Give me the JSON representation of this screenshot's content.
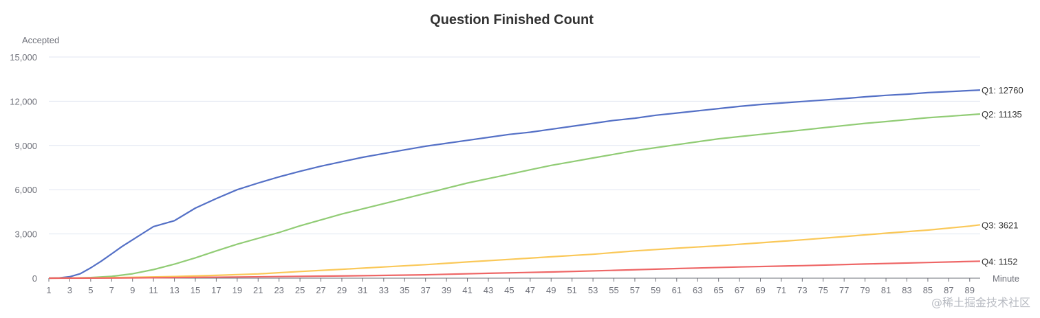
{
  "chart_data": {
    "type": "line",
    "title": "Question Finished Count",
    "xlabel": "Minute",
    "ylabel": "Accepted",
    "ylim": [
      0,
      15000
    ],
    "yticks": [
      0,
      3000,
      6000,
      9000,
      12000,
      15000
    ],
    "ytick_labels": [
      "0",
      "3,000",
      "6,000",
      "9,000",
      "12,000",
      "15,000"
    ],
    "x_range": [
      1,
      90
    ],
    "xtick_labels": [
      "1",
      "3",
      "5",
      "7",
      "9",
      "11",
      "13",
      "15",
      "17",
      "19",
      "21",
      "23",
      "25",
      "27",
      "29",
      "31",
      "33",
      "35",
      "37",
      "39",
      "41",
      "43",
      "45",
      "47",
      "49",
      "51",
      "53",
      "55",
      "57",
      "59",
      "61",
      "63",
      "65",
      "67",
      "69",
      "71",
      "73",
      "75",
      "77",
      "79",
      "81",
      "83",
      "85",
      "87",
      "89"
    ],
    "grid": true,
    "legend": "none",
    "series": [
      {
        "name": "Q1",
        "end_label": "Q1: 12760",
        "color": "#5470c6",
        "points": [
          [
            1,
            0
          ],
          [
            2,
            20
          ],
          [
            3,
            100
          ],
          [
            4,
            300
          ],
          [
            5,
            700
          ],
          [
            6,
            1150
          ],
          [
            7,
            1650
          ],
          [
            8,
            2150
          ],
          [
            9,
            2600
          ],
          [
            10,
            3050
          ],
          [
            11,
            3500
          ],
          [
            13,
            3900
          ],
          [
            15,
            4750
          ],
          [
            17,
            5400
          ],
          [
            19,
            6000
          ],
          [
            21,
            6450
          ],
          [
            23,
            6870
          ],
          [
            25,
            7250
          ],
          [
            27,
            7600
          ],
          [
            29,
            7900
          ],
          [
            31,
            8200
          ],
          [
            33,
            8450
          ],
          [
            35,
            8700
          ],
          [
            37,
            8950
          ],
          [
            39,
            9150
          ],
          [
            41,
            9350
          ],
          [
            43,
            9550
          ],
          [
            45,
            9750
          ],
          [
            47,
            9900
          ],
          [
            49,
            10100
          ],
          [
            51,
            10300
          ],
          [
            53,
            10500
          ],
          [
            55,
            10700
          ],
          [
            57,
            10850
          ],
          [
            59,
            11050
          ],
          [
            61,
            11200
          ],
          [
            63,
            11350
          ],
          [
            65,
            11500
          ],
          [
            67,
            11650
          ],
          [
            69,
            11780
          ],
          [
            71,
            11880
          ],
          [
            73,
            11980
          ],
          [
            75,
            12080
          ],
          [
            77,
            12180
          ],
          [
            79,
            12300
          ],
          [
            81,
            12400
          ],
          [
            83,
            12480
          ],
          [
            85,
            12580
          ],
          [
            87,
            12650
          ],
          [
            89,
            12720
          ],
          [
            90,
            12760
          ]
        ]
      },
      {
        "name": "Q2",
        "end_label": "Q2: 11135",
        "color": "#91cc75",
        "points": [
          [
            1,
            0
          ],
          [
            3,
            10
          ],
          [
            5,
            40
          ],
          [
            7,
            120
          ],
          [
            9,
            300
          ],
          [
            11,
            580
          ],
          [
            13,
            950
          ],
          [
            15,
            1380
          ],
          [
            17,
            1850
          ],
          [
            19,
            2300
          ],
          [
            21,
            2700
          ],
          [
            23,
            3100
          ],
          [
            25,
            3550
          ],
          [
            27,
            3950
          ],
          [
            29,
            4350
          ],
          [
            31,
            4700
          ],
          [
            33,
            5050
          ],
          [
            35,
            5400
          ],
          [
            37,
            5750
          ],
          [
            39,
            6100
          ],
          [
            41,
            6450
          ],
          [
            43,
            6750
          ],
          [
            45,
            7050
          ],
          [
            47,
            7350
          ],
          [
            49,
            7650
          ],
          [
            51,
            7900
          ],
          [
            53,
            8150
          ],
          [
            55,
            8400
          ],
          [
            57,
            8650
          ],
          [
            59,
            8850
          ],
          [
            61,
            9050
          ],
          [
            63,
            9250
          ],
          [
            65,
            9450
          ],
          [
            67,
            9600
          ],
          [
            69,
            9750
          ],
          [
            71,
            9900
          ],
          [
            73,
            10050
          ],
          [
            75,
            10200
          ],
          [
            77,
            10350
          ],
          [
            79,
            10500
          ],
          [
            81,
            10620
          ],
          [
            83,
            10750
          ],
          [
            85,
            10880
          ],
          [
            87,
            10980
          ],
          [
            89,
            11080
          ],
          [
            90,
            11135
          ]
        ]
      },
      {
        "name": "Q3",
        "end_label": "Q3: 3621",
        "color": "#fac858",
        "points": [
          [
            1,
            0
          ],
          [
            5,
            20
          ],
          [
            9,
            60
          ],
          [
            13,
            110
          ],
          [
            17,
            190
          ],
          [
            21,
            290
          ],
          [
            25,
            450
          ],
          [
            29,
            600
          ],
          [
            33,
            760
          ],
          [
            37,
            920
          ],
          [
            41,
            1100
          ],
          [
            45,
            1270
          ],
          [
            49,
            1450
          ],
          [
            53,
            1620
          ],
          [
            57,
            1850
          ],
          [
            61,
            2030
          ],
          [
            65,
            2200
          ],
          [
            69,
            2400
          ],
          [
            73,
            2600
          ],
          [
            77,
            2820
          ],
          [
            81,
            3050
          ],
          [
            85,
            3260
          ],
          [
            89,
            3530
          ],
          [
            90,
            3621
          ]
        ]
      },
      {
        "name": "Q4",
        "end_label": "Q4: 1152",
        "color": "#ee6666",
        "points": [
          [
            1,
            0
          ],
          [
            7,
            10
          ],
          [
            13,
            40
          ],
          [
            19,
            80
          ],
          [
            25,
            120
          ],
          [
            31,
            170
          ],
          [
            37,
            230
          ],
          [
            43,
            330
          ],
          [
            49,
            420
          ],
          [
            55,
            530
          ],
          [
            61,
            650
          ],
          [
            67,
            760
          ],
          [
            73,
            850
          ],
          [
            79,
            960
          ],
          [
            85,
            1060
          ],
          [
            90,
            1152
          ]
        ]
      }
    ]
  },
  "watermark": "@稀土掘金技术社区"
}
